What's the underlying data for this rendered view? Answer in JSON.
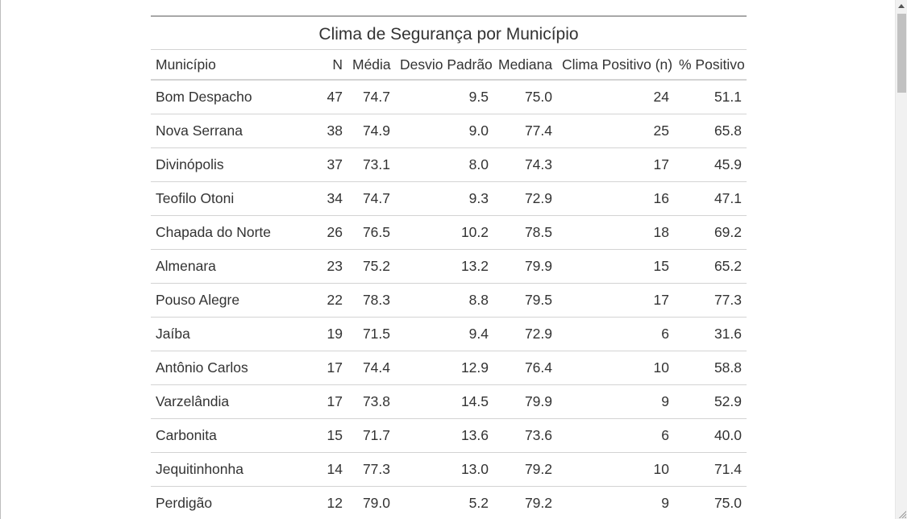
{
  "table": {
    "title": "Clima de Segurança por Município",
    "headers": [
      "Município",
      "N",
      "Média",
      "Desvio Padrão",
      "Mediana",
      "Clima Positivo (n)",
      "% Positivo"
    ],
    "rows": [
      [
        "Bom Despacho",
        "47",
        "74.7",
        "9.5",
        "75.0",
        "24",
        "51.1"
      ],
      [
        "Nova Serrana",
        "38",
        "74.9",
        "9.0",
        "77.4",
        "25",
        "65.8"
      ],
      [
        "Divinópolis",
        "37",
        "73.1",
        "8.0",
        "74.3",
        "17",
        "45.9"
      ],
      [
        "Teofilo Otoni",
        "34",
        "74.7",
        "9.3",
        "72.9",
        "16",
        "47.1"
      ],
      [
        "Chapada do Norte",
        "26",
        "76.5",
        "10.2",
        "78.5",
        "18",
        "69.2"
      ],
      [
        "Almenara",
        "23",
        "75.2",
        "13.2",
        "79.9",
        "15",
        "65.2"
      ],
      [
        "Pouso Alegre",
        "22",
        "78.3",
        "8.8",
        "79.5",
        "17",
        "77.3"
      ],
      [
        "Jaíba",
        "19",
        "71.5",
        "9.4",
        "72.9",
        "6",
        "31.6"
      ],
      [
        "Antônio Carlos",
        "17",
        "74.4",
        "12.9",
        "76.4",
        "10",
        "58.8"
      ],
      [
        "Varzelândia",
        "17",
        "73.8",
        "14.5",
        "79.9",
        "9",
        "52.9"
      ],
      [
        "Carbonita",
        "15",
        "71.7",
        "13.6",
        "73.6",
        "6",
        "40.0"
      ],
      [
        "Jequitinhonha",
        "14",
        "77.3",
        "13.0",
        "79.2",
        "10",
        "71.4"
      ],
      [
        "Perdigão",
        "12",
        "79.0",
        "5.2",
        "79.2",
        "9",
        "75.0"
      ]
    ]
  },
  "scrollbar": {
    "icon": "scroll-up-arrow-icon"
  }
}
